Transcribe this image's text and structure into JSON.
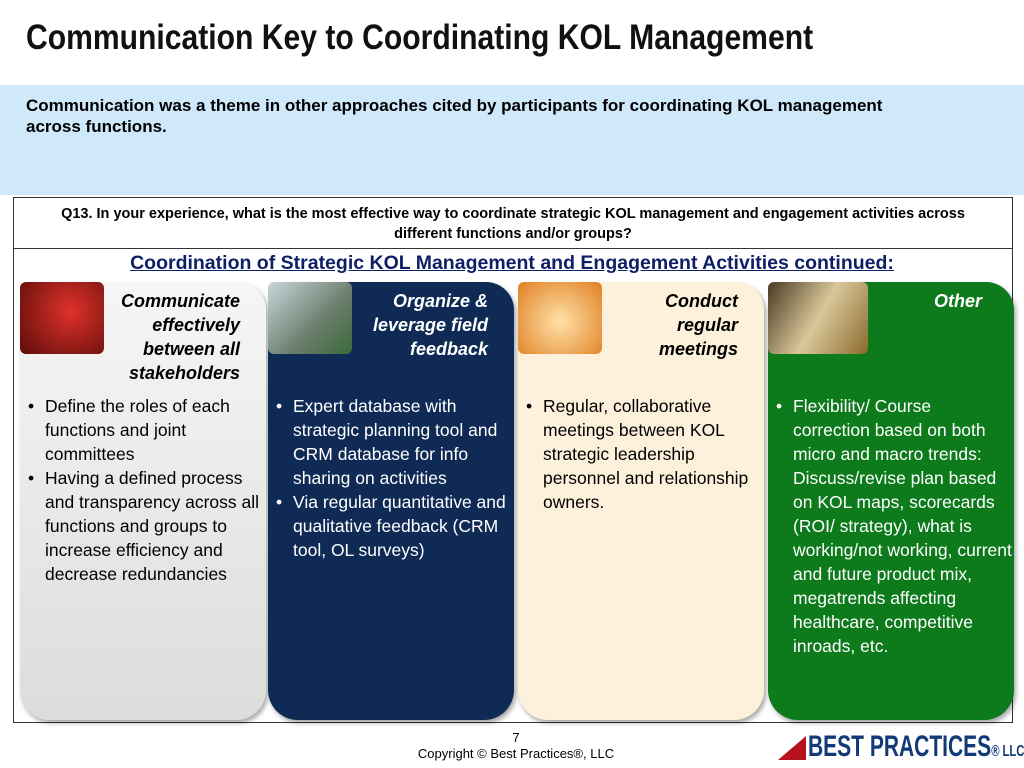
{
  "title": "Communication Key to Coordinating KOL Management",
  "summary": "Communication was a theme in other approaches cited by participants for coordinating KOL management across functions.",
  "question": "Q13. In your experience, what is the most effective way to coordinate strategic KOL management and engagement activities across different functions and/or groups?",
  "subtitle": "Coordination of Strategic KOL Management and Engagement Activities continued:",
  "columns": [
    {
      "heading": "Communicate effectively between all stakeholders",
      "bullets": [
        "Define the roles of each functions and joint committees",
        "Having a defined process and transparency across all functions and groups to increase efficiency and decrease redundancies"
      ]
    },
    {
      "heading": "Organize & leverage field feedback",
      "bullets": [
        "Expert database with strategic planning tool and CRM database for info sharing on activities",
        "Via regular quantitative and qualitative feedback (CRM tool, OL surveys)"
      ]
    },
    {
      "heading": "Conduct regular meetings",
      "bullets": [
        "Regular, collaborative meetings between KOL strategic leadership personnel and relationship owners."
      ]
    },
    {
      "heading": "Other",
      "bullets": [
        "Flexibility/ Course correction based on both micro and macro trends: Discuss/revise plan based on KOL maps, scorecards (ROI/ strategy), what is working/not working, current and future product mix, megatrends affecting healthcare, competitive inroads, etc."
      ]
    }
  ],
  "footer": {
    "page": "7",
    "copyright": "Copyright © Best Practices®, LLC",
    "logo": "BEST PRACTICES® LLC"
  },
  "colors": {
    "navy": "#0e2a55",
    "green": "#0d7a1c",
    "cream": "#fdf1dc",
    "band": "#cfe8fa"
  }
}
